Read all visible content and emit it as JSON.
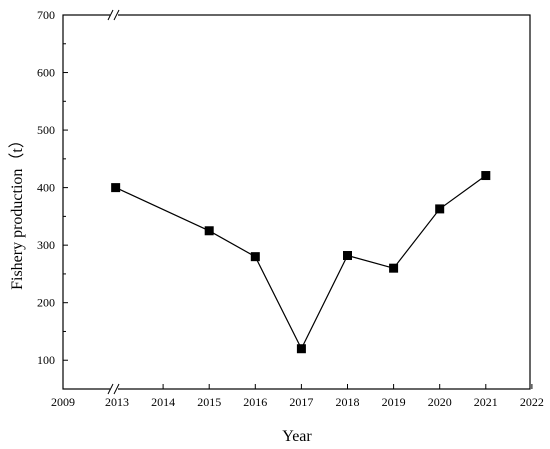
{
  "chart_data": {
    "type": "line",
    "title": "",
    "xlabel": "Year",
    "ylabel": "Fishery production（t）",
    "ylim": [
      50,
      700
    ],
    "x_ticks": [
      "2009",
      "2013",
      "2014",
      "2015",
      "2016",
      "2017",
      "2018",
      "2019",
      "2020",
      "2021",
      "2022"
    ],
    "y_ticks": [
      100,
      200,
      300,
      400,
      500,
      600,
      700
    ],
    "x_axis_break": true,
    "grid": false,
    "legend": "none",
    "marker": "square",
    "color": "#000000",
    "series": [
      {
        "x": [
          2012.9,
          2015,
          2016,
          2017,
          2018,
          2019,
          2020,
          2021
        ],
        "values": [
          400,
          325,
          280,
          120,
          282,
          260,
          363,
          421
        ]
      }
    ]
  }
}
